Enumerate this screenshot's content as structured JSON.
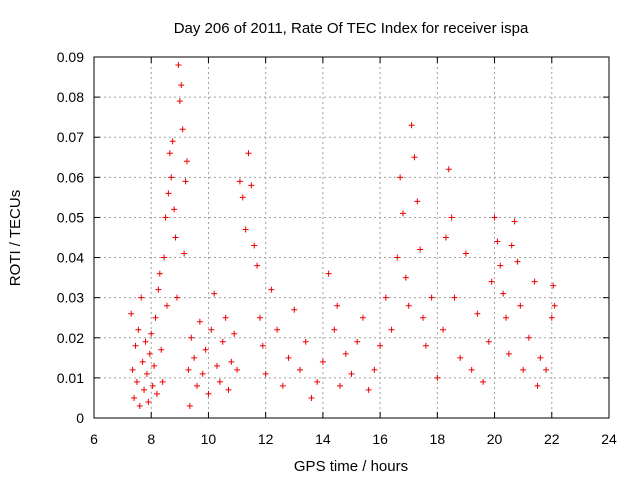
{
  "chart_data": {
    "type": "scatter",
    "title": "Day 206 of 2011, Rate Of TEC Index for receiver ispa",
    "xlabel": "GPS time / hours",
    "ylabel": "ROTI / TECUs",
    "xlim": [
      6,
      24
    ],
    "ylim": [
      0,
      0.09
    ],
    "xticks": [
      "6",
      "8",
      "10",
      "12",
      "14",
      "16",
      "18",
      "20",
      "22",
      "24"
    ],
    "yticks": [
      "0",
      "0.01",
      "0.02",
      "0.03",
      "0.04",
      "0.05",
      "0.06",
      "0.07",
      "0.08",
      "0.09"
    ],
    "grid": true,
    "marker": "+",
    "color": "#ee0000",
    "series": [
      {
        "x": [
          7.3,
          7.35,
          7.4,
          7.45,
          7.5,
          7.55,
          7.6,
          7.65,
          7.7,
          7.75,
          7.8,
          7.85,
          7.9,
          7.95,
          8.0,
          8.05,
          8.1,
          8.15,
          8.2,
          8.25,
          8.3,
          8.35,
          8.4,
          8.45,
          8.5,
          8.55,
          8.6,
          8.65,
          8.7,
          8.75,
          8.8,
          8.85,
          8.9,
          8.95,
          9.0,
          9.05,
          9.1,
          9.15,
          9.2,
          9.25,
          9.3,
          9.35,
          9.4,
          9.5,
          9.6,
          9.7,
          9.8,
          9.9,
          10.0,
          10.1,
          10.2,
          10.3,
          10.4,
          10.5,
          10.6,
          10.7,
          10.8,
          10.9,
          11.0,
          11.1,
          11.2,
          11.3,
          11.4,
          11.5,
          11.6,
          11.7,
          11.8,
          11.9,
          12.0,
          12.2,
          12.4,
          12.6,
          12.8,
          13.0,
          13.2,
          13.4,
          13.6,
          13.8,
          14.0,
          14.2,
          14.4,
          14.5,
          14.6,
          14.8,
          15.0,
          15.2,
          15.4,
          15.6,
          15.8,
          16.0,
          16.2,
          16.4,
          16.6,
          16.7,
          16.8,
          16.9,
          17.0,
          17.1,
          17.2,
          17.3,
          17.4,
          17.5,
          17.6,
          17.8,
          18.0,
          18.2,
          18.3,
          18.4,
          18.5,
          18.6,
          18.8,
          19.0,
          19.2,
          19.4,
          19.6,
          19.8,
          19.9,
          20.0,
          20.1,
          20.2,
          20.3,
          20.4,
          20.5,
          20.6,
          20.7,
          20.8,
          20.9,
          21.0,
          21.2,
          21.4,
          21.5,
          21.6,
          21.8,
          22.0,
          22.05,
          22.1
        ],
        "y": [
          0.026,
          0.012,
          0.005,
          0.018,
          0.009,
          0.022,
          0.003,
          0.03,
          0.014,
          0.007,
          0.019,
          0.011,
          0.004,
          0.016,
          0.021,
          0.008,
          0.013,
          0.025,
          0.006,
          0.032,
          0.036,
          0.017,
          0.009,
          0.04,
          0.05,
          0.028,
          0.056,
          0.066,
          0.06,
          0.069,
          0.052,
          0.045,
          0.03,
          0.088,
          0.079,
          0.083,
          0.072,
          0.041,
          0.059,
          0.064,
          0.012,
          0.003,
          0.02,
          0.015,
          0.008,
          0.024,
          0.011,
          0.017,
          0.006,
          0.022,
          0.031,
          0.013,
          0.009,
          0.019,
          0.025,
          0.007,
          0.014,
          0.021,
          0.012,
          0.059,
          0.055,
          0.047,
          0.066,
          0.058,
          0.043,
          0.038,
          0.025,
          0.018,
          0.011,
          0.032,
          0.022,
          0.008,
          0.015,
          0.027,
          0.012,
          0.019,
          0.005,
          0.009,
          0.014,
          0.036,
          0.022,
          0.028,
          0.008,
          0.016,
          0.011,
          0.019,
          0.025,
          0.007,
          0.012,
          0.018,
          0.03,
          0.022,
          0.04,
          0.06,
          0.051,
          0.035,
          0.028,
          0.073,
          0.065,
          0.054,
          0.042,
          0.025,
          0.018,
          0.03,
          0.01,
          0.022,
          0.045,
          0.062,
          0.05,
          0.03,
          0.015,
          0.041,
          0.012,
          0.026,
          0.009,
          0.019,
          0.034,
          0.05,
          0.044,
          0.038,
          0.031,
          0.025,
          0.016,
          0.043,
          0.049,
          0.039,
          0.028,
          0.012,
          0.02,
          0.034,
          0.008,
          0.015,
          0.012,
          0.025,
          0.033,
          0.028
        ]
      }
    ]
  }
}
